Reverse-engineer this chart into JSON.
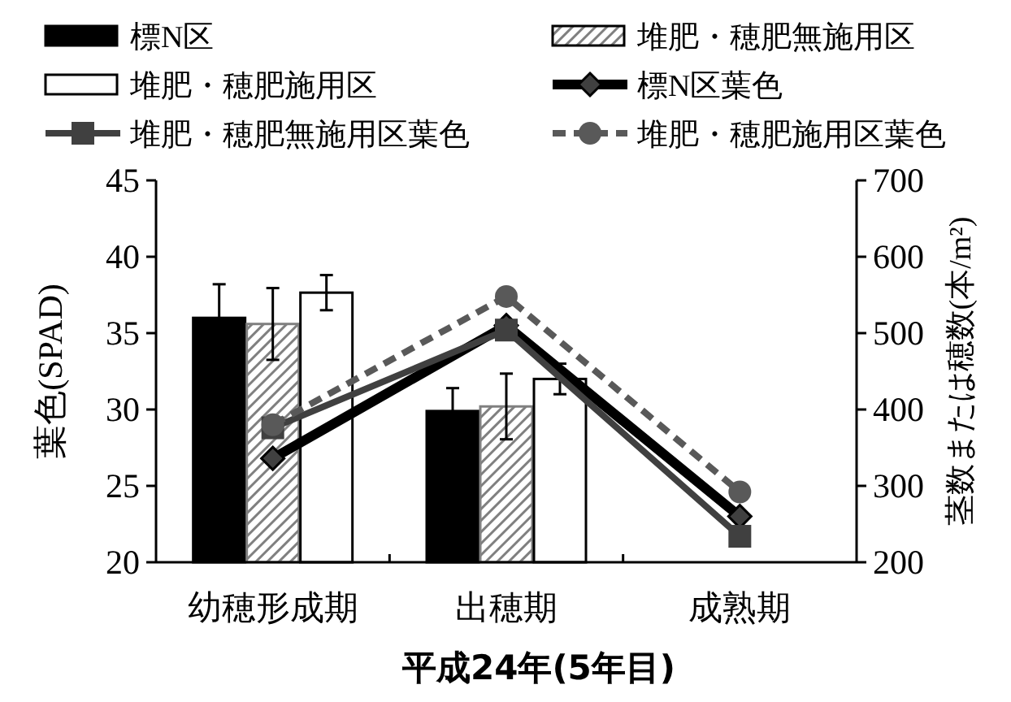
{
  "chart_data": {
    "type": "bar",
    "xlabel": "平成24年(5年目)",
    "ylabel": "葉色(SPAD)",
    "y2label": "茎数または穂数(本/m²)",
    "categories": [
      "幼穂形成期",
      "出穂期",
      "成熟期"
    ],
    "ylim": [
      20,
      45
    ],
    "yticks": [
      20,
      25,
      30,
      35,
      40,
      45
    ],
    "y2lim": [
      200,
      700
    ],
    "y2ticks": [
      200,
      300,
      400,
      500,
      600,
      700
    ],
    "legend": "top",
    "grid": false,
    "series": [
      {
        "name": "標N区",
        "axis": "y2",
        "color": "#000000",
        "values": [
          520,
          398,
          null
        ],
        "errors": [
          44,
          30,
          null
        ]
      },
      {
        "name": "堆肥・穂肥無施用区",
        "axis": "y2",
        "color": "#808080",
        "values": [
          512,
          404,
          null
        ],
        "errors": [
          47,
          43,
          null
        ]
      },
      {
        "name": "堆肥・穂肥施用区",
        "axis": "y2",
        "color": "#ffffff",
        "values": [
          553,
          440,
          null
        ],
        "errors": [
          23,
          20,
          null
        ]
      },
      {
        "name": "標N区葉色",
        "type": "line",
        "color": "#000000",
        "marker": "diamond",
        "line_style": "solid",
        "values": [
          26.8,
          35.5,
          23.0
        ]
      },
      {
        "name": "堆肥・穂肥無施用区葉色",
        "type": "line",
        "color": "#404040",
        "marker": "square",
        "line_style": "solid",
        "values": [
          28.8,
          35.2,
          21.7
        ]
      },
      {
        "name": "堆肥・穂肥施用区葉色",
        "type": "line",
        "color": "#595959",
        "marker": "circle",
        "line_style": "dashed",
        "values": [
          29.0,
          37.4,
          24.6
        ]
      }
    ]
  }
}
